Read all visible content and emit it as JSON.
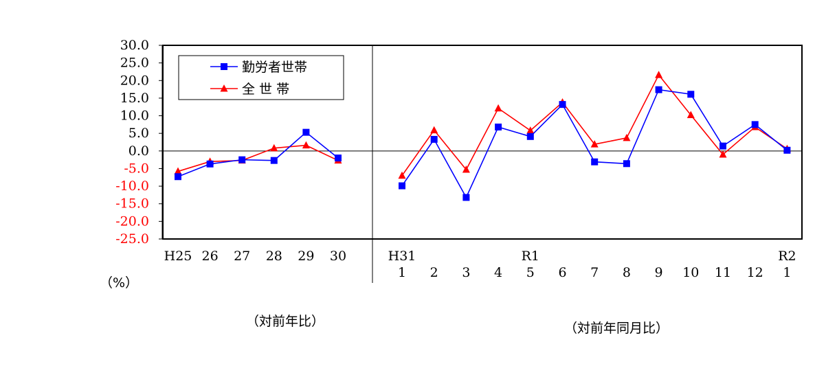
{
  "chart_data": {
    "type": "line",
    "y_axis": {
      "ylim": [
        -25,
        30
      ],
      "ticks": [
        {
          "value": 30,
          "label": "30.0"
        },
        {
          "value": 25,
          "label": "25.0"
        },
        {
          "value": 20,
          "label": "20.0"
        },
        {
          "value": 15,
          "label": "15.0"
        },
        {
          "value": 10,
          "label": "10.0"
        },
        {
          "value": 5,
          "label": "5.0"
        },
        {
          "value": 0,
          "label": "0.0"
        },
        {
          "value": -5,
          "label": "-5.0"
        },
        {
          "value": -10,
          "label": "-10.0"
        },
        {
          "value": -15,
          "label": "-15.0"
        },
        {
          "value": -20,
          "label": "-20.0"
        },
        {
          "value": -25,
          "label": "-25.0"
        }
      ],
      "unit_label": "（%）",
      "positive_color": "#000000",
      "negative_color": "#ff0000"
    },
    "legend": {
      "position": "top-left",
      "entries": [
        "勤労者世帯",
        "全 世 帯"
      ]
    },
    "panels": [
      {
        "subtitle": "（対前年比）",
        "categories": [
          {
            "top": "H25",
            "bottom": ""
          },
          {
            "top": "26",
            "bottom": ""
          },
          {
            "top": "27",
            "bottom": ""
          },
          {
            "top": "28",
            "bottom": ""
          },
          {
            "top": "29",
            "bottom": ""
          },
          {
            "top": "30",
            "bottom": ""
          }
        ],
        "series": [
          {
            "name": "勤労者世帯",
            "values": [
              -7.3,
              -3.7,
              -2.5,
              -2.7,
              5.3,
              -2.0
            ]
          },
          {
            "name": "全 世 帯",
            "values": [
              -5.8,
              -3.0,
              -2.7,
              0.8,
              1.6,
              -2.7
            ]
          }
        ]
      },
      {
        "subtitle": "（対前年同月比）",
        "categories": [
          {
            "top": "H31",
            "bottom": "1"
          },
          {
            "top": "",
            "bottom": "2"
          },
          {
            "top": "",
            "bottom": "3"
          },
          {
            "top": "",
            "bottom": "4"
          },
          {
            "top": "R1",
            "bottom": "5"
          },
          {
            "top": "",
            "bottom": "6"
          },
          {
            "top": "",
            "bottom": "7"
          },
          {
            "top": "",
            "bottom": "8"
          },
          {
            "top": "",
            "bottom": "9"
          },
          {
            "top": "",
            "bottom": "10"
          },
          {
            "top": "",
            "bottom": "11"
          },
          {
            "top": "",
            "bottom": "12"
          },
          {
            "top": "R2",
            "bottom": "1"
          }
        ],
        "series": [
          {
            "name": "勤労者世帯",
            "values": [
              -9.9,
              3.3,
              -13.2,
              6.8,
              4.1,
              13.2,
              -3.1,
              -3.6,
              17.4,
              16.1,
              1.4,
              7.5,
              0.2
            ]
          },
          {
            "name": "全 世 帯",
            "values": [
              -7.0,
              5.9,
              -5.3,
              12.1,
              5.8,
              13.8,
              1.9,
              3.7,
              21.6,
              10.2,
              -1.0,
              6.8,
              0.6
            ]
          }
        ]
      }
    ],
    "series_style": [
      {
        "name": "勤労者世帯",
        "color": "#0000ff",
        "marker": "square"
      },
      {
        "name": "全 世 帯",
        "color": "#ff0000",
        "marker": "triangle"
      }
    ],
    "grid": false
  }
}
